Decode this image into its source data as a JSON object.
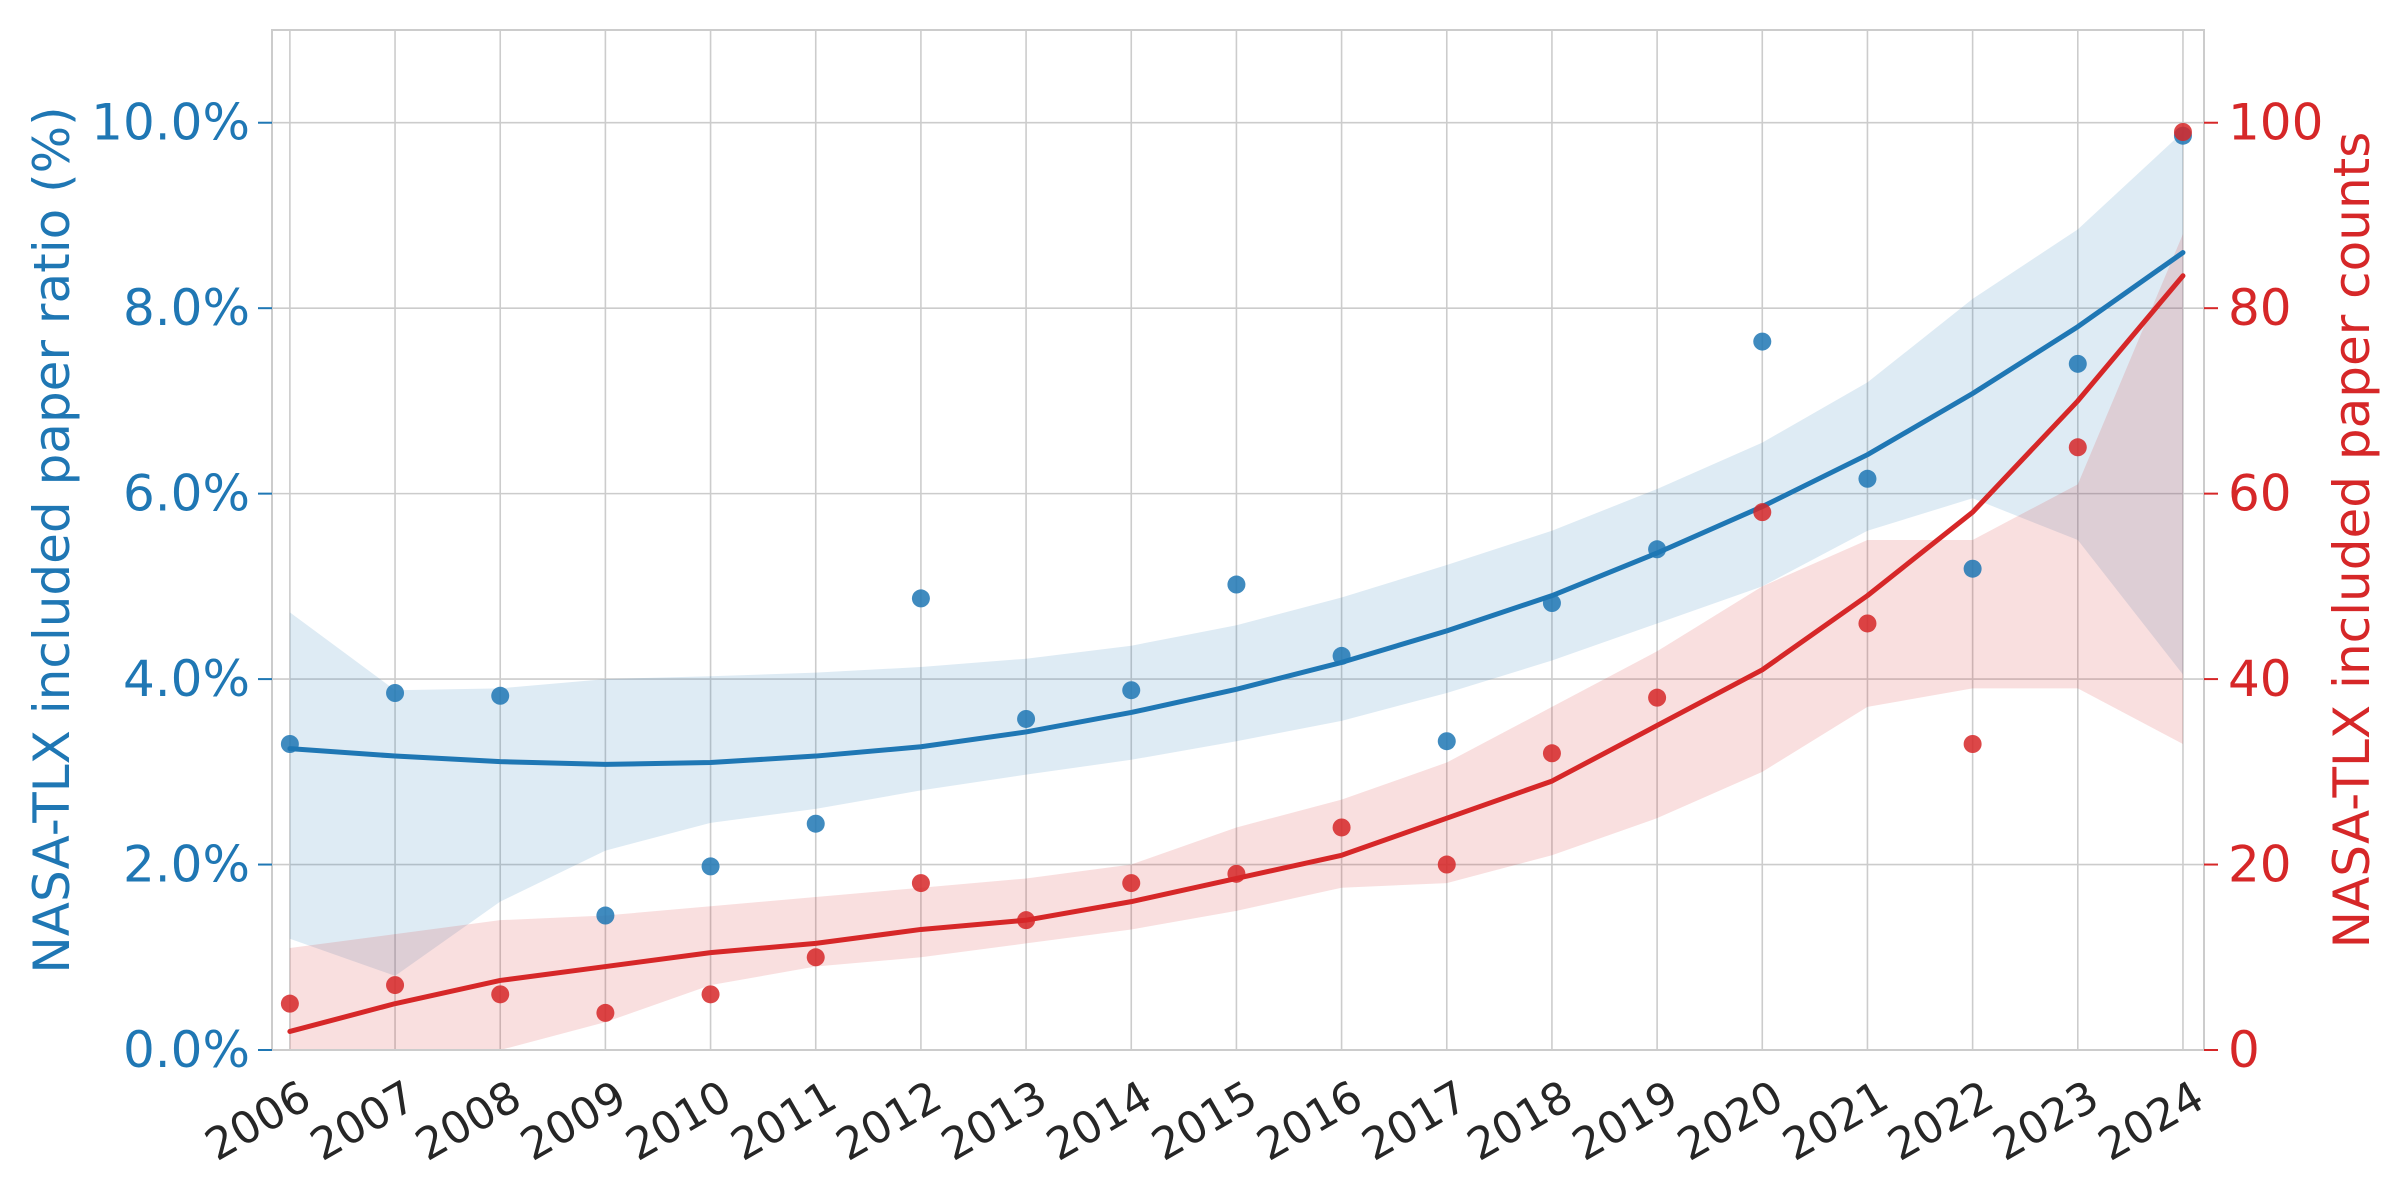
{
  "chart_data": {
    "type": "scatter",
    "x": [
      2006,
      2007,
      2008,
      2009,
      2010,
      2011,
      2012,
      2013,
      2014,
      2015,
      2016,
      2017,
      2018,
      2019,
      2020,
      2021,
      2022,
      2023,
      2024
    ],
    "x_tick_labels": [
      "2006",
      "2007",
      "2008",
      "2009",
      "2010",
      "2011",
      "2012",
      "2013",
      "2014",
      "2015",
      "2016",
      "2017",
      "2018",
      "2019",
      "2020",
      "2021",
      "2022",
      "2023",
      "2024"
    ],
    "xlim": [
      2006,
      2024
    ],
    "grid": true,
    "y_left": {
      "label": "NASA-TLX included paper ratio (%)",
      "ylim": [
        0,
        11
      ],
      "ticks": [
        0,
        2,
        4,
        6,
        8,
        10
      ],
      "tick_labels": [
        "0.0%",
        "2.0%",
        "4.0%",
        "6.0%",
        "8.0%",
        "10.0%"
      ],
      "color": "#1f77b4"
    },
    "y_right": {
      "label": "NASA-TLX included paper counts",
      "ylim": [
        0,
        110
      ],
      "ticks": [
        0,
        20,
        40,
        60,
        80,
        100
      ],
      "tick_labels": [
        "0",
        "20",
        "40",
        "60",
        "80",
        "100"
      ],
      "color": "#d62728"
    },
    "series": [
      {
        "axis": "left",
        "color": "#1f77b4",
        "points": [
          3.3,
          3.85,
          3.82,
          1.45,
          1.98,
          2.44,
          4.87,
          3.57,
          3.88,
          5.02,
          4.25,
          3.33,
          4.82,
          5.4,
          7.64,
          6.16,
          5.19,
          7.4,
          9.86
        ],
        "fit": [
          3.25,
          3.17,
          3.11,
          3.08,
          3.1,
          3.17,
          3.27,
          3.43,
          3.64,
          3.89,
          4.18,
          4.52,
          4.9,
          5.36,
          5.86,
          6.42,
          7.08,
          7.8,
          8.6
        ],
        "ci_lower": [
          1.2,
          0.8,
          1.6,
          2.15,
          2.45,
          2.6,
          2.8,
          2.97,
          3.13,
          3.33,
          3.55,
          3.85,
          4.2,
          4.6,
          5.0,
          5.6,
          5.95,
          5.5,
          4.05
        ],
        "ci_upper": [
          4.72,
          3.88,
          3.9,
          4.0,
          4.03,
          4.07,
          4.13,
          4.22,
          4.36,
          4.58,
          4.88,
          5.23,
          5.6,
          6.05,
          6.55,
          7.2,
          8.1,
          8.85,
          9.9
        ]
      },
      {
        "axis": "right",
        "color": "#d62728",
        "points": [
          5,
          7,
          6,
          4,
          6,
          10,
          18,
          14,
          18,
          19,
          24,
          20,
          32,
          38,
          58,
          46,
          33,
          65,
          99
        ],
        "fit": [
          2,
          5,
          7.5,
          9,
          10.5,
          11.5,
          13,
          14,
          16,
          18.5,
          21,
          25,
          29,
          35,
          41,
          49,
          58,
          70,
          83.5
        ],
        "ci_lower": [
          0,
          0,
          0,
          3,
          7,
          9,
          10,
          11.5,
          13,
          15,
          17.5,
          18,
          21,
          25,
          30,
          37,
          39,
          39,
          33
        ],
        "ci_upper": [
          11,
          12.5,
          14,
          14.5,
          15.5,
          16.5,
          17.5,
          18.5,
          20,
          24,
          27,
          31,
          37,
          43,
          50,
          55,
          55,
          61,
          88
        ]
      }
    ]
  }
}
